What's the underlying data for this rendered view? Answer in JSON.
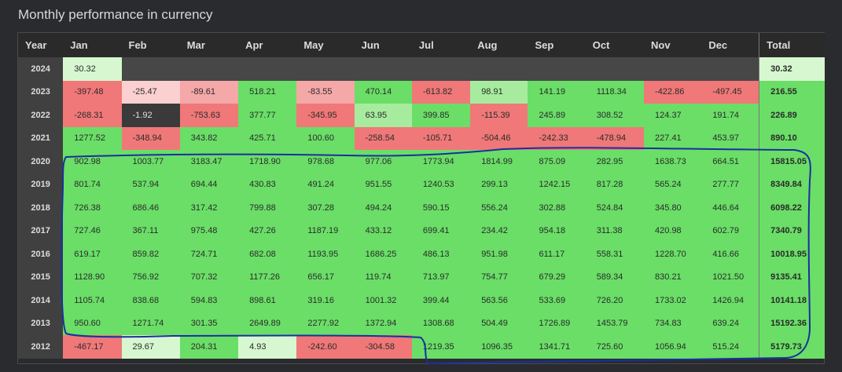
{
  "page_title": "Monthly performance in currency",
  "headers": [
    "Year",
    "Jan",
    "Feb",
    "Mar",
    "Apr",
    "May",
    "Jun",
    "Jul",
    "Aug",
    "Sep",
    "Oct",
    "Nov",
    "Dec",
    "Total"
  ],
  "rows": [
    {
      "year": "2024",
      "months": [
        "30.32",
        "",
        "",
        "",
        "",
        "",
        "",
        "",
        "",
        "",
        "",
        ""
      ],
      "total": "30.32"
    },
    {
      "year": "2023",
      "months": [
        "-397.48",
        "-25.47",
        "-89.61",
        "518.21",
        "-83.55",
        "470.14",
        "-613.82",
        "98.91",
        "141.19",
        "1118.34",
        "-422.86",
        "-497.45"
      ],
      "total": "216.55"
    },
    {
      "year": "2022",
      "months": [
        "-268.31",
        "-1.92",
        "-753.63",
        "377.77",
        "-345.95",
        "63.95",
        "399.85",
        "-115.39",
        "245.89",
        "308.52",
        "124.37",
        "191.74"
      ],
      "total": "226.89"
    },
    {
      "year": "2021",
      "months": [
        "1277.52",
        "-348.94",
        "343.82",
        "425.71",
        "100.60",
        "-258.54",
        "-105.71",
        "-504.46",
        "-242.33",
        "-478.94",
        "227.41",
        "453.97"
      ],
      "total": "890.10"
    },
    {
      "year": "2020",
      "months": [
        "902.98",
        "1003.77",
        "3183.47",
        "1718.90",
        "978.68",
        "977.06",
        "1773.94",
        "1814.99",
        "875.09",
        "282.95",
        "1638.73",
        "664.51"
      ],
      "total": "15815.05"
    },
    {
      "year": "2019",
      "months": [
        "801.74",
        "537.94",
        "694.44",
        "430.83",
        "491.24",
        "951.55",
        "1240.53",
        "299.13",
        "1242.15",
        "817.28",
        "565.24",
        "277.77"
      ],
      "total": "8349.84"
    },
    {
      "year": "2018",
      "months": [
        "726.38",
        "686.46",
        "317.42",
        "799.88",
        "307.28",
        "494.24",
        "590.15",
        "556.24",
        "302.88",
        "524.84",
        "345.80",
        "446.64"
      ],
      "total": "6098.22"
    },
    {
      "year": "2017",
      "months": [
        "727.46",
        "367.11",
        "975.48",
        "427.26",
        "1187.19",
        "433.12",
        "699.41",
        "234.42",
        "954.18",
        "311.38",
        "420.98",
        "602.79"
      ],
      "total": "7340.79"
    },
    {
      "year": "2016",
      "months": [
        "619.17",
        "859.82",
        "724.71",
        "682.08",
        "1193.95",
        "1686.25",
        "486.13",
        "951.98",
        "611.17",
        "558.31",
        "1228.70",
        "416.66"
      ],
      "total": "10018.95"
    },
    {
      "year": "2015",
      "months": [
        "1128.90",
        "756.92",
        "707.32",
        "1177.26",
        "656.17",
        "119.74",
        "713.97",
        "754.77",
        "679.29",
        "589.34",
        "830.21",
        "1021.50"
      ],
      "total": "9135.41"
    },
    {
      "year": "2014",
      "months": [
        "1105.74",
        "838.68",
        "594.83",
        "898.61",
        "319.16",
        "1001.32",
        "399.44",
        "563.56",
        "533.69",
        "726.20",
        "1733.02",
        "1426.94"
      ],
      "total": "10141.18"
    },
    {
      "year": "2013",
      "months": [
        "950.60",
        "1271.74",
        "301.35",
        "2649.89",
        "2277.92",
        "1372.94",
        "1308.68",
        "504.49",
        "1726.89",
        "1453.79",
        "734.83",
        "639.24"
      ],
      "total": "15192.36"
    },
    {
      "year": "2012",
      "months": [
        "-467.17",
        "29.67",
        "204.31",
        "4.93",
        "-242.60",
        "-304.58",
        "1219.35",
        "1096.35",
        "1341.71",
        "725.60",
        "1056.94",
        "515.24"
      ],
      "total": "5179.73"
    }
  ],
  "colors": {
    "strong_positive": "#6ade67",
    "light_positive": "#a7ec9e",
    "faint_positive": "#d6f7d0",
    "strong_negative": "#f07878",
    "light_negative": "#f5a8a8",
    "faint_negative": "#fbd0d0",
    "neutral": "#3a3a3a",
    "empty": "#474747",
    "annotation": "#1a2fa0"
  }
}
